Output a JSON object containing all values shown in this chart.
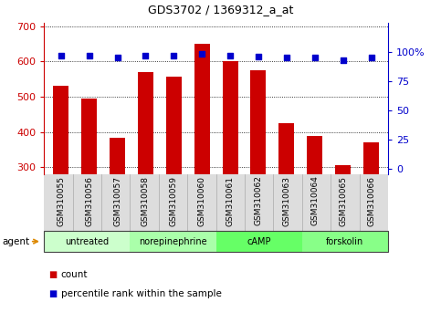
{
  "title": "GDS3702 / 1369312_a_at",
  "samples": [
    "GSM310055",
    "GSM310056",
    "GSM310057",
    "GSM310058",
    "GSM310059",
    "GSM310060",
    "GSM310061",
    "GSM310062",
    "GSM310063",
    "GSM310064",
    "GSM310065",
    "GSM310066"
  ],
  "counts": [
    530,
    495,
    383,
    570,
    558,
    650,
    600,
    575,
    425,
    390,
    305,
    370
  ],
  "percentiles": [
    97,
    97,
    95,
    97,
    97,
    98,
    97,
    96,
    95,
    95,
    93,
    95
  ],
  "bar_color": "#cc0000",
  "dot_color": "#0000cc",
  "ylim_left": [
    280,
    710
  ],
  "ylim_right": [
    -5,
    125
  ],
  "yticks_left": [
    300,
    400,
    500,
    600,
    700
  ],
  "yticks_right": [
    0,
    25,
    50,
    75,
    100
  ],
  "groups": [
    {
      "label": "untreated",
      "start": 0,
      "end": 3,
      "color": "#ccffcc"
    },
    {
      "label": "norepinephrine",
      "start": 3,
      "end": 6,
      "color": "#aaffaa"
    },
    {
      "label": "cAMP",
      "start": 6,
      "end": 9,
      "color": "#66ff66"
    },
    {
      "label": "forskolin",
      "start": 9,
      "end": 12,
      "color": "#88ff88"
    }
  ],
  "xlabel_color": "#cc0000",
  "ylabel_right_color": "#0000cc",
  "legend_count_color": "#cc0000",
  "legend_pct_color": "#0000cc",
  "background_color": "#ffffff",
  "tick_bg_color": "#dddddd",
  "grid_color": "#000000",
  "agent_label": "agent",
  "agent_arrow_color": "#dd8800"
}
